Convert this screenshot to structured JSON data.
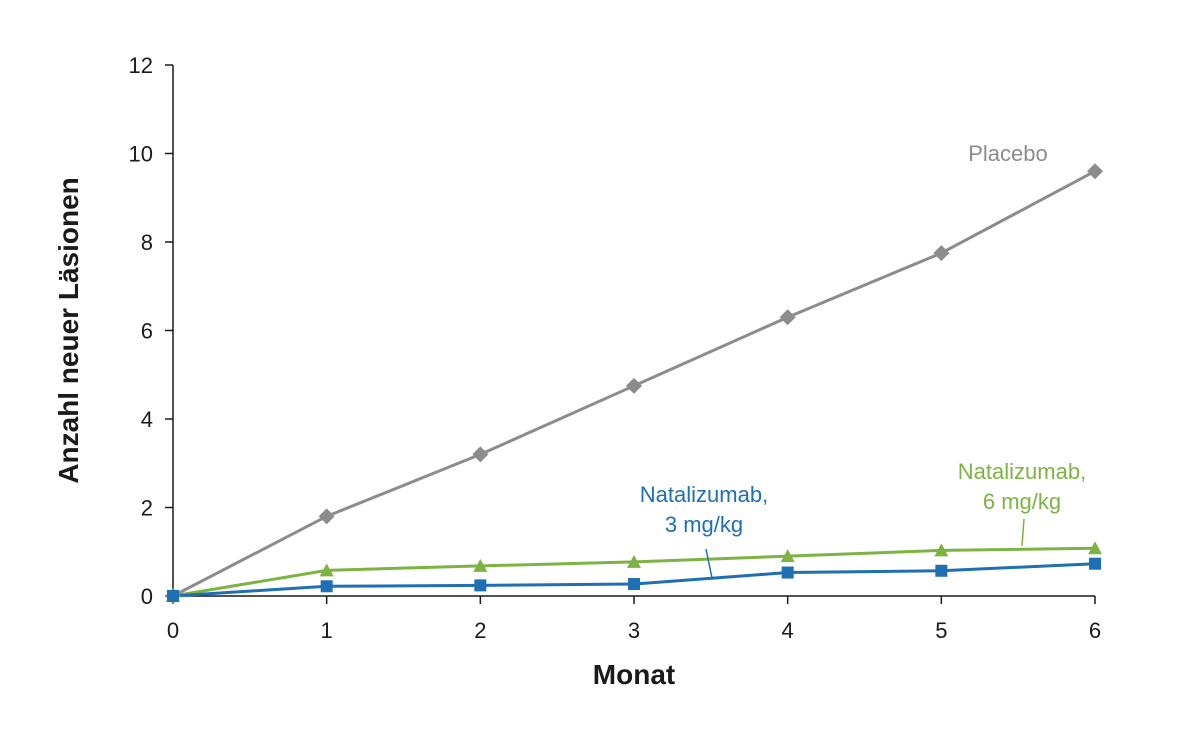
{
  "chart_data": {
    "type": "line",
    "title": "",
    "xlabel": "Monat",
    "ylabel": "Anzahl neuer Läsionen",
    "x": [
      0,
      1,
      2,
      3,
      4,
      5,
      6
    ],
    "xlim": [
      0,
      6
    ],
    "ylim": [
      0,
      12
    ],
    "xticks": [
      0,
      1,
      2,
      3,
      4,
      5,
      6
    ],
    "yticks": [
      0,
      2,
      4,
      6,
      8,
      10,
      12
    ],
    "grid": false,
    "legend": "none",
    "series": [
      {
        "name": "Placebo",
        "label_lines": [
          "Placebo"
        ],
        "color": "#8c8c8c",
        "marker": "diamond",
        "values": [
          0,
          1.8,
          3.2,
          4.75,
          6.3,
          7.75,
          9.6
        ]
      },
      {
        "name": "Natalizumab, 6 mg/kg",
        "label_lines": [
          "Natalizumab,",
          "6 mg/kg"
        ],
        "color": "#7cb342",
        "marker": "triangle",
        "values": [
          0,
          0.58,
          0.68,
          0.77,
          0.9,
          1.03,
          1.08
        ]
      },
      {
        "name": "Natalizumab, 3 mg/kg",
        "label_lines": [
          "Natalizumab,",
          "3 mg/kg"
        ],
        "color": "#1f6fb5",
        "marker": "square",
        "values": [
          0,
          0.22,
          0.24,
          0.27,
          0.53,
          0.57,
          0.73
        ]
      }
    ]
  }
}
